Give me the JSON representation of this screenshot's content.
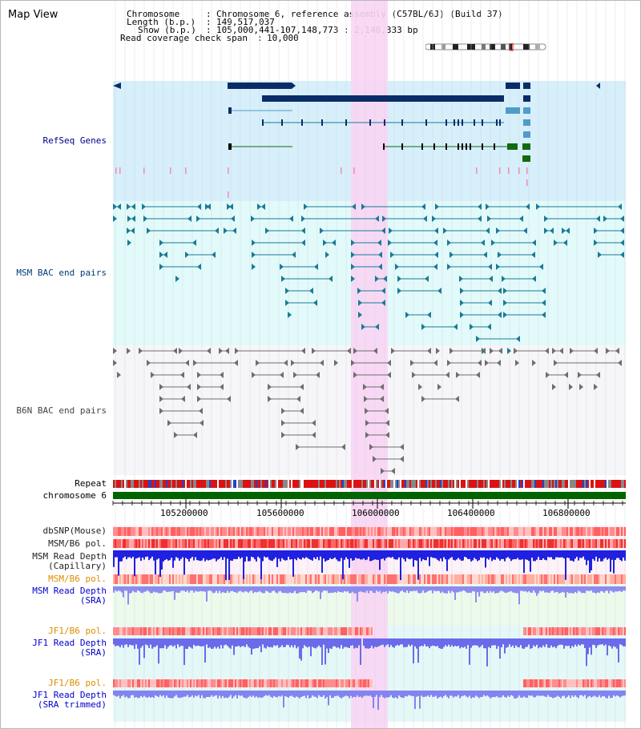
{
  "title": "Map View",
  "header": {
    "chromosome_label": "Chromosome",
    "chromosome_value": "Chromosome 6, reference assembly (C57BL/6J) (Build 37)",
    "length_label": "Length (b.p.)",
    "length_value": "149,517,037",
    "show_label": "Show (b.p.)",
    "show_value": "105,000,441-107,148,773 : 2,148,333 bp",
    "coverage_label": "Read coverage check span",
    "coverage_value": "10,000"
  },
  "tracks": {
    "refseq": "RefSeq Genes",
    "msm_bac": "MSM BAC end pairs",
    "b6n_bac": "B6N BAC end pairs",
    "repeat": "Repeat",
    "chromosome": "chromosome 6",
    "dbsnp": "dbSNP(Mouse)",
    "msm_b6_pol_1": "MSM/B6 pol.",
    "msm_read_depth_cap_1": "MSM Read Depth",
    "msm_read_depth_cap_2": "(Capillary)",
    "msm_b6_pol_2": "MSM/B6 pol.",
    "msm_read_depth_sra_1": "MSM Read Depth",
    "msm_read_depth_sra_2": "(SRA)",
    "jf1_b6_pol_1": "JF1/B6 pol.",
    "jf1_read_depth_sra_1": "JF1 Read Depth",
    "jf1_read_depth_sra_2": "(SRA)",
    "jf1_b6_pol_2": "JF1/B6 pol.",
    "jf1_read_depth_trim_1": "JF1 Read Depth",
    "jf1_read_depth_trim_2": "(SRA trimmed)"
  },
  "axis_ticks": [
    "105200000",
    "105600000",
    "106000000",
    "106400000",
    "106800000"
  ],
  "colors": {
    "refseq_bg": "#d6effa",
    "msm_bg": "#e2fafa",
    "b6n_bg": "#f6f6f9",
    "highlight": "#f9d5f4",
    "gene_dark": "#0a2c66",
    "gene_mid": "#4f9cc8",
    "gene_green": "#126a12",
    "msm_pair": "#1a7a96",
    "b6n_pair": "#6e6e6e",
    "chromosome_bar": "#006400",
    "depth_blue": "#2020e0",
    "depth_light": "#8c8cf0",
    "label_blue": "#00008b",
    "label_orange": "#e08c00"
  }
}
